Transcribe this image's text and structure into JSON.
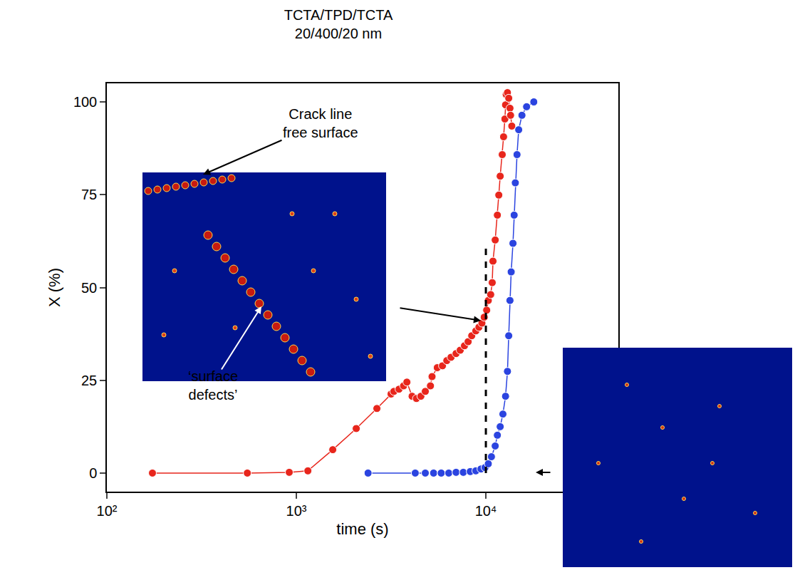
{
  "chart_data": {
    "type": "scatter",
    "title": [
      "TCTA/TPD/TCTA",
      "20/400/20 nm"
    ],
    "x_label": "time (s)",
    "y_label": "X (%)",
    "log": "x",
    "grid": false,
    "xlim": [
      100,
      50000
    ],
    "xticks": [
      {
        "value": 100,
        "label": "10²"
      },
      {
        "value": 1000,
        "label": "10³"
      },
      {
        "value": 10000,
        "label": "10⁴"
      }
    ],
    "ylim": [
      -5,
      105
    ],
    "yticks": [
      0,
      25,
      50,
      75,
      100
    ],
    "series": [
      {
        "color": "#e8261c",
        "marker": "circle",
        "line_style": "solid",
        "x": [
          174,
          551,
          917,
          1150,
          1556,
          2070,
          2660,
          3160,
          3270,
          3480,
          3680,
          3830,
          4080,
          4300,
          4540,
          4790,
          5100,
          5200,
          5540,
          5900,
          6220,
          6550,
          6960,
          7320,
          7710,
          8060,
          8420,
          8850,
          9190,
          9530,
          9800,
          10100,
          10300,
          10600,
          10800,
          10900,
          11200,
          11500,
          11700,
          11900,
          12200,
          12400,
          12600,
          12700,
          12800,
          13000,
          13200,
          13400,
          13500,
          13700
        ],
        "values": [
          0,
          0,
          0.2,
          0.6,
          6.3,
          12,
          17.4,
          21.3,
          22,
          22.6,
          23.5,
          24.5,
          20.7,
          20.1,
          20.7,
          22,
          23.5,
          26,
          28.4,
          28.9,
          30.3,
          31.2,
          32.2,
          33.1,
          34.3,
          35.4,
          37,
          38.3,
          39.3,
          40.4,
          42,
          43.9,
          46.5,
          48.1,
          51.3,
          57.1,
          62.8,
          69.5,
          74.9,
          80,
          85.8,
          90.6,
          95.4,
          99.2,
          102,
          102.5,
          101,
          98.3,
          96.4,
          93.5
        ]
      },
      {
        "color": "#2b44e0",
        "marker": "circle",
        "line_style": "solid",
        "x": [
          2390,
          4240,
          4790,
          5300,
          5810,
          6370,
          6960,
          7600,
          8270,
          8850,
          9420,
          9900,
          10300,
          10700,
          11200,
          11500,
          11900,
          12300,
          12700,
          13000,
          13200,
          13400,
          13600,
          13900,
          14100,
          14300,
          14600,
          14900,
          15500,
          16400,
          17900
        ],
        "values": [
          0,
          0,
          0,
          0,
          0,
          0,
          0.2,
          0.2,
          0.4,
          0.6,
          1.1,
          1.5,
          2.5,
          4.4,
          7.3,
          10.2,
          12.5,
          15.9,
          20.7,
          27.4,
          37,
          46.5,
          54.2,
          61.9,
          69.5,
          78.2,
          85.8,
          92.5,
          96.4,
          98.7,
          100
        ]
      }
    ],
    "vline": {
      "x": 10000,
      "y": [
        0,
        62
      ],
      "line_style": "dash",
      "color": "#000000"
    },
    "annotations": {
      "crack": [
        "Crack line",
        "free surface"
      ],
      "defects": [
        "‘surface",
        "defects’"
      ]
    }
  }
}
